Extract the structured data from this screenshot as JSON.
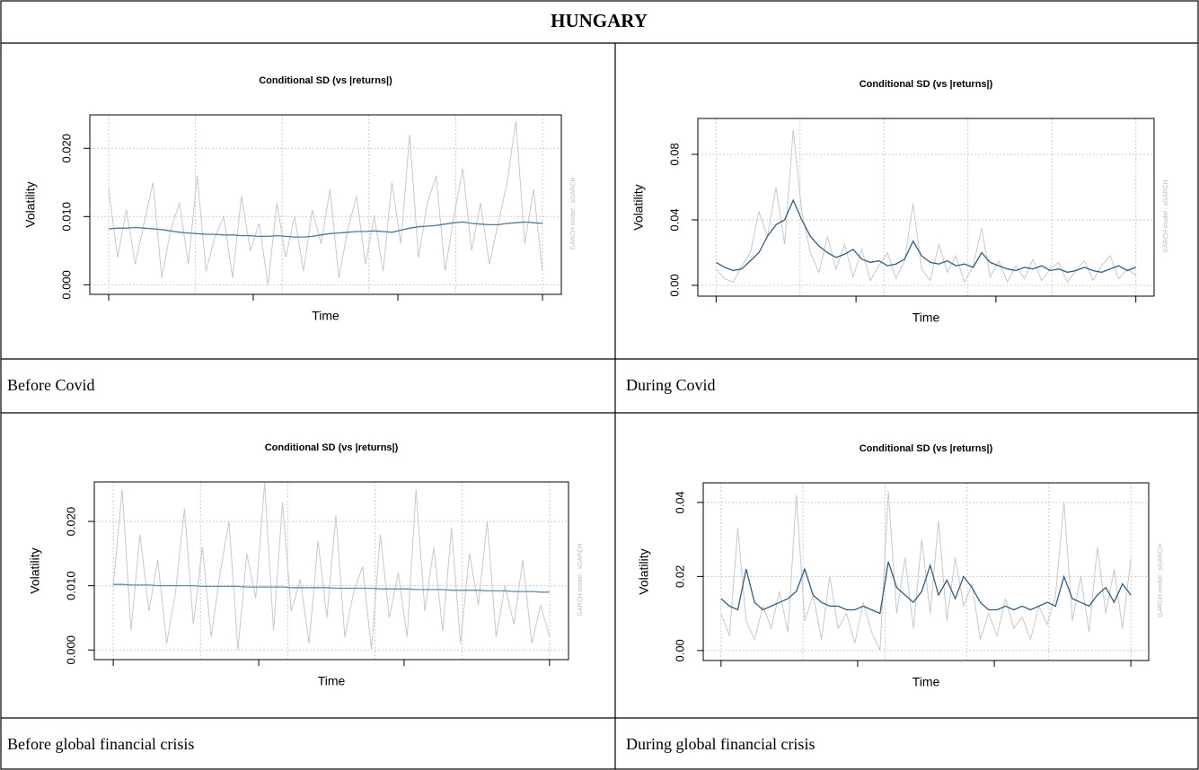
{
  "title": "HUNGARY",
  "captions": [
    "Before Covid",
    "During Covid",
    "Before global financial crisis",
    "During global financial crisis"
  ],
  "chart_data": [
    {
      "type": "line",
      "title": "Conditional SD (vs |returns|)",
      "xlabel": "Time",
      "ylabel": "Volatility",
      "note": "GARCH model : sGARCH",
      "ylim": [
        -0.0014,
        0.0249
      ],
      "yticks": [
        {
          "value": 0,
          "label": "0.000"
        },
        {
          "value": 0.01,
          "label": "0.010"
        },
        {
          "value": 0.02,
          "label": "0.020"
        }
      ],
      "grid": true,
      "series": [
        {
          "color": "#c8c8c8",
          "values": [
            0.014,
            0.004,
            0.011,
            0.003,
            0.009,
            0.015,
            0.001,
            0.008,
            0.012,
            0.003,
            0.016,
            0.002,
            0.007,
            0.01,
            0.001,
            0.013,
            0.005,
            0.009,
            0.0,
            0.012,
            0.004,
            0.01,
            0.002,
            0.011,
            0.006,
            0.014,
            0.001,
            0.008,
            0.013,
            0.003,
            0.01,
            0.002,
            0.015,
            0.006,
            0.022,
            0.004,
            0.012,
            0.016,
            0.002,
            0.01,
            0.017,
            0.005,
            0.012,
            0.003,
            0.009,
            0.015,
            0.024,
            0.006,
            0.014,
            0.002
          ]
        },
        {
          "color": "#4a7b9d",
          "values": [
            0.0082,
            0.0083,
            0.0083,
            0.0084,
            0.0083,
            0.0082,
            0.0081,
            0.0079,
            0.0077,
            0.0076,
            0.0075,
            0.0074,
            0.0074,
            0.0073,
            0.0073,
            0.0072,
            0.0072,
            0.0071,
            0.0071,
            0.0072,
            0.0071,
            0.007,
            0.007,
            0.0071,
            0.0073,
            0.0075,
            0.0076,
            0.0077,
            0.0078,
            0.0078,
            0.0079,
            0.0078,
            0.0077,
            0.008,
            0.0083,
            0.0085,
            0.0086,
            0.0087,
            0.0089,
            0.0091,
            0.0092,
            0.009,
            0.0089,
            0.0088,
            0.0088,
            0.009,
            0.0091,
            0.0092,
            0.0091,
            0.009
          ]
        }
      ]
    },
    {
      "type": "line",
      "title": "Conditional SD (vs |returns|)",
      "xlabel": "Time",
      "ylabel": "Volatility",
      "note": "GARCH model : sGARCH",
      "ylim": [
        -0.0066,
        0.1019
      ],
      "yticks": [
        {
          "value": 0,
          "label": "0.00"
        },
        {
          "value": 0.04,
          "label": "0.04"
        },
        {
          "value": 0.08,
          "label": "0.08"
        }
      ],
      "grid": true,
      "series": [
        {
          "color": "#c8c8c8",
          "values": [
            0.01,
            0.004,
            0.002,
            0.012,
            0.02,
            0.045,
            0.03,
            0.06,
            0.025,
            0.095,
            0.045,
            0.02,
            0.008,
            0.03,
            0.01,
            0.025,
            0.005,
            0.022,
            0.003,
            0.012,
            0.02,
            0.004,
            0.015,
            0.05,
            0.01,
            0.003,
            0.025,
            0.008,
            0.018,
            0.002,
            0.012,
            0.035,
            0.005,
            0.015,
            0.002,
            0.012,
            0.004,
            0.016,
            0.003,
            0.01,
            0.014,
            0.002,
            0.009,
            0.015,
            0.003,
            0.012,
            0.018,
            0.004,
            0.01,
            0.006
          ]
        },
        {
          "color": "#2f5f85",
          "values": [
            0.014,
            0.011,
            0.009,
            0.01,
            0.015,
            0.02,
            0.03,
            0.037,
            0.04,
            0.052,
            0.04,
            0.03,
            0.024,
            0.02,
            0.017,
            0.019,
            0.022,
            0.016,
            0.014,
            0.015,
            0.012,
            0.013,
            0.016,
            0.027,
            0.018,
            0.014,
            0.013,
            0.015,
            0.012,
            0.013,
            0.011,
            0.02,
            0.014,
            0.012,
            0.01,
            0.009,
            0.011,
            0.01,
            0.012,
            0.009,
            0.01,
            0.008,
            0.009,
            0.011,
            0.009,
            0.008,
            0.01,
            0.012,
            0.009,
            0.011
          ]
        }
      ]
    },
    {
      "type": "line",
      "title": "Conditional SD (vs |returns|)",
      "xlabel": "Time",
      "ylabel": "Volatility",
      "note": "GARCH model : sGARCH",
      "ylim": [
        -0.0015,
        0.02615
      ],
      "yticks": [
        {
          "value": 0,
          "label": "0.000"
        },
        {
          "value": 0.01,
          "label": "0.010"
        },
        {
          "value": 0.02,
          "label": "0.020"
        }
      ],
      "grid": true,
      "series": [
        {
          "color": "#c8c8c8",
          "values": [
            0.01,
            0.025,
            0.003,
            0.018,
            0.006,
            0.014,
            0.001,
            0.009,
            0.022,
            0.004,
            0.016,
            0.002,
            0.012,
            0.02,
            0.0,
            0.015,
            0.008,
            0.026,
            0.003,
            0.023,
            0.006,
            0.011,
            0.001,
            0.017,
            0.005,
            0.021,
            0.002,
            0.009,
            0.013,
            0.0,
            0.018,
            0.005,
            0.012,
            0.002,
            0.025,
            0.006,
            0.016,
            0.003,
            0.019,
            0.001,
            0.015,
            0.007,
            0.02,
            0.002,
            0.01,
            0.004,
            0.014,
            0.001,
            0.007,
            0.002
          ]
        },
        {
          "color": "#5f8fa8",
          "values": [
            0.0102,
            0.0102,
            0.0101,
            0.0101,
            0.0101,
            0.01,
            0.01,
            0.01,
            0.01,
            0.01,
            0.0099,
            0.0099,
            0.0099,
            0.0099,
            0.0099,
            0.0098,
            0.0098,
            0.0098,
            0.0098,
            0.0098,
            0.0097,
            0.0097,
            0.0097,
            0.0097,
            0.0097,
            0.0096,
            0.0096,
            0.0096,
            0.0096,
            0.0096,
            0.0095,
            0.0095,
            0.0095,
            0.0095,
            0.0094,
            0.0094,
            0.0094,
            0.0094,
            0.0093,
            0.0093,
            0.0093,
            0.0093,
            0.0092,
            0.0092,
            0.0092,
            0.0091,
            0.0091,
            0.0091,
            0.009,
            0.009
          ]
        }
      ]
    },
    {
      "type": "line",
      "title": "Conditional SD (vs |returns|)",
      "xlabel": "Time",
      "ylabel": "Volatility",
      "note": "GARCH model : sGARCH",
      "ylim": [
        -0.0027,
        0.0453
      ],
      "yticks": [
        {
          "value": 0,
          "label": "0.00"
        },
        {
          "value": 0.02,
          "label": "0.02"
        },
        {
          "value": 0.04,
          "label": "0.04"
        }
      ],
      "grid": true,
      "series": [
        {
          "color": "#c8c8c8",
          "values": [
            0.01,
            0.004,
            0.033,
            0.008,
            0.003,
            0.012,
            0.006,
            0.016,
            0.005,
            0.042,
            0.008,
            0.015,
            0.003,
            0.02,
            0.006,
            0.01,
            0.002,
            0.013,
            0.005,
            0.0,
            0.043,
            0.01,
            0.025,
            0.006,
            0.03,
            0.01,
            0.035,
            0.008,
            0.025,
            0.012,
            0.018,
            0.003,
            0.01,
            0.004,
            0.014,
            0.006,
            0.009,
            0.003,
            0.012,
            0.007,
            0.015,
            0.04,
            0.008,
            0.02,
            0.005,
            0.028,
            0.01,
            0.022,
            0.006,
            0.025
          ]
        },
        {
          "color": "#2f5f85",
          "values": [
            0.014,
            0.012,
            0.011,
            0.022,
            0.013,
            0.011,
            0.012,
            0.013,
            0.014,
            0.016,
            0.022,
            0.015,
            0.013,
            0.012,
            0.012,
            0.011,
            0.011,
            0.012,
            0.011,
            0.01,
            0.024,
            0.017,
            0.015,
            0.013,
            0.016,
            0.023,
            0.015,
            0.019,
            0.014,
            0.02,
            0.017,
            0.013,
            0.011,
            0.011,
            0.012,
            0.011,
            0.012,
            0.011,
            0.012,
            0.013,
            0.012,
            0.02,
            0.014,
            0.013,
            0.012,
            0.015,
            0.017,
            0.013,
            0.018,
            0.015
          ]
        }
      ]
    }
  ]
}
